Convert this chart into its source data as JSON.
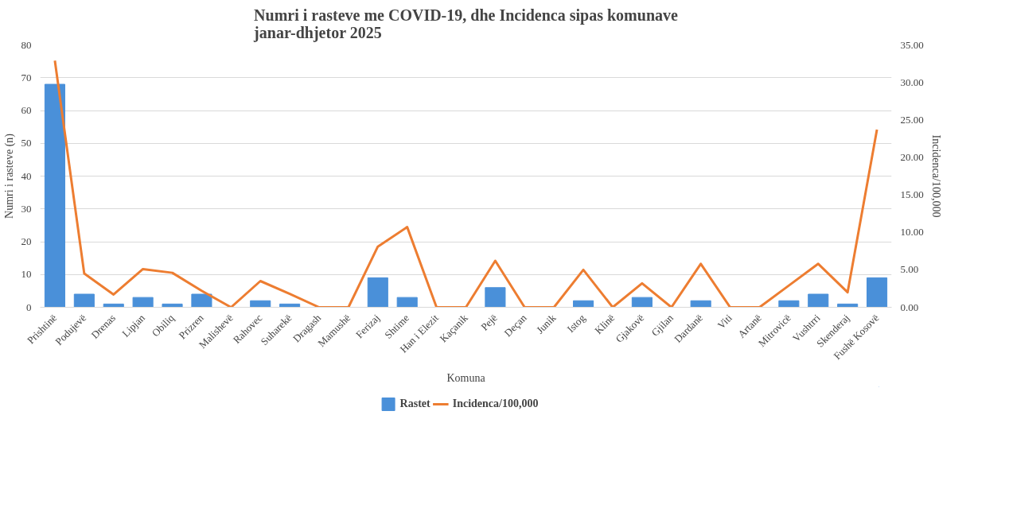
{
  "chart_data": {
    "type": "bar",
    "title": "Numri i rasteve me COVID-19, dhe Incidenca sipas komunave\njanar-dhjetor 2025",
    "xlabel": "Komuna",
    "ylabel": "Numri i rasteve (n)",
    "y2label": "Incidenca/100,000",
    "categories": [
      "Prishtinë",
      "Podujevë",
      "Drenas",
      "Lipjan",
      "Obiliq",
      "Prizren",
      "Malishevë",
      "Rahovec",
      "Suharekë",
      "Dragash",
      "Mamushë",
      "Ferizaj",
      "Shtime",
      "Han i Elezit",
      "Kaçanik",
      "Pejë",
      "Deçan",
      "Junik",
      "Istog",
      "Klinë",
      "Gjakovë",
      "Gjilan",
      "Dardanë",
      "Viti",
      "Artanë",
      "Mitrovicë",
      "Vushtrri",
      "Skenderaj",
      "Fushë Kosovë"
    ],
    "series": [
      {
        "name": "Rastet",
        "color": "#4a90d9",
        "values": [
          68,
          4,
          1,
          3,
          1,
          4,
          0,
          2,
          1,
          0,
          0,
          9,
          3,
          0,
          0,
          6,
          0,
          0,
          2,
          0,
          3,
          0,
          2,
          0,
          0,
          2,
          4,
          1,
          9
        ]
      },
      {
        "name": "Incidenca/100,000",
        "type": "line",
        "axis": "y2",
        "color": "#ed7d31",
        "values": [
          32.9,
          4.5,
          1.7,
          5.1,
          4.6,
          2.2,
          0,
          3.5,
          1.8,
          0,
          0,
          8.1,
          10.7,
          0,
          0,
          6.2,
          0,
          0,
          5.0,
          0,
          3.2,
          0,
          5.8,
          0,
          0,
          2.9,
          5.8,
          2.0,
          23.7
        ]
      }
    ],
    "ylim": [
      0,
      80
    ],
    "yticks": [
      0,
      10,
      20,
      30,
      40,
      50,
      60,
      70,
      80
    ],
    "y2lim": [
      0,
      35
    ],
    "y2ticks": [
      {
        "value": 0,
        "label": "0.00"
      },
      {
        "value": 5,
        "label": "5.00"
      },
      {
        "value": 10,
        "label": "10.00"
      },
      {
        "value": 15,
        "label": "15.00"
      },
      {
        "value": 20,
        "label": "20.00"
      },
      {
        "value": 25,
        "label": "25.00"
      },
      {
        "value": 30,
        "label": "30.00"
      },
      {
        "value": 35,
        "label": "35.00"
      }
    ],
    "grid": "y",
    "legend": "bottom",
    "marker": "none",
    "line_style": "solid"
  }
}
